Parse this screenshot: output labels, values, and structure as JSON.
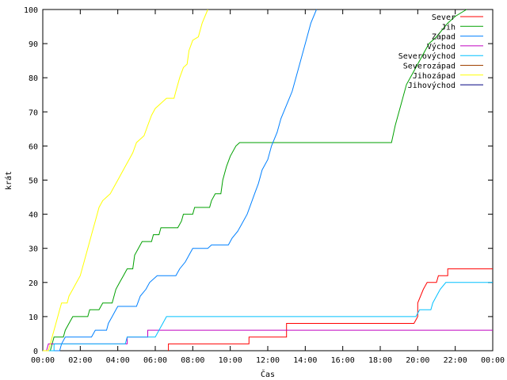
{
  "chart_data": {
    "type": "line",
    "xlabel": "Čas",
    "ylabel": "krát",
    "xlim": [
      0,
      24
    ],
    "ylim": [
      0,
      100
    ],
    "x_ticks": [
      "00:00",
      "02:00",
      "04:00",
      "06:00",
      "08:00",
      "10:00",
      "12:00",
      "14:00",
      "16:00",
      "18:00",
      "20:00",
      "22:00",
      "00:00"
    ],
    "y_ticks": [
      "0",
      "10",
      "20",
      "30",
      "40",
      "50",
      "60",
      "70",
      "80",
      "90",
      "100"
    ],
    "grid": false,
    "legend_position": "top-right",
    "series": [
      {
        "name": "Sever",
        "color": "#ff0000",
        "points": [
          [
            6.7,
            0
          ],
          [
            6.7,
            2
          ],
          [
            11.0,
            2
          ],
          [
            11.0,
            4
          ],
          [
            13.0,
            4
          ],
          [
            13.0,
            6
          ],
          [
            13.0,
            8
          ],
          [
            19.8,
            8
          ],
          [
            20.0,
            10
          ],
          [
            20.0,
            14
          ],
          [
            20.3,
            18
          ],
          [
            20.5,
            20
          ],
          [
            21.0,
            20
          ],
          [
            21.1,
            22
          ],
          [
            21.6,
            22
          ],
          [
            21.6,
            24
          ],
          [
            24,
            24
          ]
        ]
      },
      {
        "name": "Jih",
        "color": "#00a000",
        "points": [
          [
            0,
            0
          ],
          [
            0.4,
            0
          ],
          [
            0.5,
            2
          ],
          [
            0.6,
            4
          ],
          [
            1.1,
            4
          ],
          [
            1.2,
            6
          ],
          [
            1.4,
            8
          ],
          [
            1.6,
            10
          ],
          [
            2.4,
            10
          ],
          [
            2.5,
            12
          ],
          [
            3.0,
            12
          ],
          [
            3.2,
            14
          ],
          [
            3.7,
            14
          ],
          [
            3.9,
            18
          ],
          [
            4.1,
            20
          ],
          [
            4.3,
            22
          ],
          [
            4.5,
            24
          ],
          [
            4.8,
            24
          ],
          [
            4.9,
            28
          ],
          [
            5.1,
            30
          ],
          [
            5.3,
            32
          ],
          [
            5.8,
            32
          ],
          [
            5.9,
            34
          ],
          [
            6.2,
            34
          ],
          [
            6.3,
            36
          ],
          [
            7.2,
            36
          ],
          [
            7.4,
            38
          ],
          [
            7.5,
            40
          ],
          [
            8.0,
            40
          ],
          [
            8.1,
            42
          ],
          [
            8.9,
            42
          ],
          [
            9.0,
            44
          ],
          [
            9.2,
            46
          ],
          [
            9.5,
            46
          ],
          [
            9.6,
            50
          ],
          [
            9.8,
            54
          ],
          [
            10.0,
            57
          ],
          [
            10.3,
            60
          ],
          [
            10.5,
            61
          ],
          [
            18.6,
            61
          ],
          [
            18.8,
            66
          ],
          [
            19.1,
            72
          ],
          [
            19.4,
            78
          ],
          [
            19.8,
            82
          ],
          [
            20.2,
            86
          ],
          [
            20.6,
            90
          ],
          [
            21.0,
            92
          ],
          [
            21.6,
            96
          ],
          [
            22.0,
            98
          ],
          [
            22.6,
            100
          ]
        ]
      },
      {
        "name": "Západ",
        "color": "#0080ff",
        "points": [
          [
            0,
            0
          ],
          [
            0.9,
            0
          ],
          [
            1.0,
            2
          ],
          [
            1.2,
            4
          ],
          [
            2.6,
            4
          ],
          [
            2.8,
            6
          ],
          [
            3.4,
            6
          ],
          [
            3.5,
            8
          ],
          [
            3.7,
            10
          ],
          [
            3.9,
            12
          ],
          [
            4.0,
            13
          ],
          [
            5.0,
            13
          ],
          [
            5.2,
            16
          ],
          [
            5.5,
            18
          ],
          [
            5.7,
            20
          ],
          [
            6.1,
            22
          ],
          [
            7.1,
            22
          ],
          [
            7.3,
            24
          ],
          [
            7.6,
            26
          ],
          [
            7.8,
            28
          ],
          [
            8.0,
            30
          ],
          [
            8.8,
            30
          ],
          [
            9.0,
            31
          ],
          [
            9.9,
            31
          ],
          [
            10.1,
            33
          ],
          [
            10.4,
            35
          ],
          [
            10.6,
            37
          ],
          [
            10.9,
            40
          ],
          [
            11.1,
            43
          ],
          [
            11.3,
            46
          ],
          [
            11.5,
            49
          ],
          [
            11.7,
            53
          ],
          [
            12.0,
            56
          ],
          [
            12.2,
            60
          ],
          [
            12.5,
            64
          ],
          [
            12.7,
            68
          ],
          [
            13.0,
            72
          ],
          [
            13.3,
            76
          ],
          [
            13.6,
            82
          ],
          [
            13.9,
            88
          ],
          [
            14.1,
            92
          ],
          [
            14.3,
            96
          ],
          [
            14.6,
            100
          ]
        ]
      },
      {
        "name": "Východ",
        "color": "#c000c0",
        "points": [
          [
            0,
            0
          ],
          [
            0.2,
            0
          ],
          [
            0.3,
            2
          ],
          [
            4.5,
            2
          ],
          [
            4.5,
            4
          ],
          [
            5.6,
            4
          ],
          [
            5.6,
            6
          ],
          [
            24,
            6
          ]
        ]
      },
      {
        "name": "Severovýchod",
        "color": "#00c0ff",
        "points": [
          [
            0,
            0
          ],
          [
            0.6,
            0
          ],
          [
            0.6,
            2
          ],
          [
            4.4,
            2
          ],
          [
            4.5,
            4
          ],
          [
            6.0,
            4
          ],
          [
            6.2,
            6
          ],
          [
            6.4,
            8
          ],
          [
            6.6,
            10
          ],
          [
            19.9,
            10
          ],
          [
            20.1,
            12
          ],
          [
            20.7,
            12
          ],
          [
            20.8,
            14
          ],
          [
            21.0,
            16
          ],
          [
            21.2,
            18
          ],
          [
            21.5,
            20
          ],
          [
            24,
            20
          ]
        ]
      },
      {
        "name": "Severozápad",
        "color": "#a04000",
        "points": []
      },
      {
        "name": "Jihozápad",
        "color": "#ffff00",
        "points": [
          [
            0,
            0
          ],
          [
            0.3,
            0
          ],
          [
            0.4,
            2
          ],
          [
            0.5,
            4
          ],
          [
            0.7,
            8
          ],
          [
            0.9,
            12
          ],
          [
            1.0,
            14
          ],
          [
            1.3,
            14
          ],
          [
            1.4,
            16
          ],
          [
            1.6,
            18
          ],
          [
            1.8,
            20
          ],
          [
            2.0,
            22
          ],
          [
            2.2,
            26
          ],
          [
            2.4,
            30
          ],
          [
            2.6,
            34
          ],
          [
            2.8,
            38
          ],
          [
            3.0,
            42
          ],
          [
            3.2,
            44
          ],
          [
            3.4,
            45
          ],
          [
            3.6,
            46
          ],
          [
            3.8,
            48
          ],
          [
            4.0,
            50
          ],
          [
            4.2,
            52
          ],
          [
            4.4,
            54
          ],
          [
            4.6,
            56
          ],
          [
            4.8,
            58
          ],
          [
            5.0,
            61
          ],
          [
            5.2,
            62
          ],
          [
            5.4,
            63
          ],
          [
            5.6,
            66
          ],
          [
            5.8,
            69
          ],
          [
            6.0,
            71
          ],
          [
            6.2,
            72
          ],
          [
            6.4,
            73
          ],
          [
            6.6,
            74
          ],
          [
            7.0,
            74
          ],
          [
            7.1,
            76
          ],
          [
            7.3,
            80
          ],
          [
            7.5,
            83
          ],
          [
            7.7,
            84
          ],
          [
            7.8,
            88
          ],
          [
            8.0,
            91
          ],
          [
            8.3,
            92
          ],
          [
            8.5,
            96
          ],
          [
            8.8,
            100
          ]
        ]
      },
      {
        "name": "Jihovýchod",
        "color": "#000080",
        "points": []
      }
    ]
  }
}
